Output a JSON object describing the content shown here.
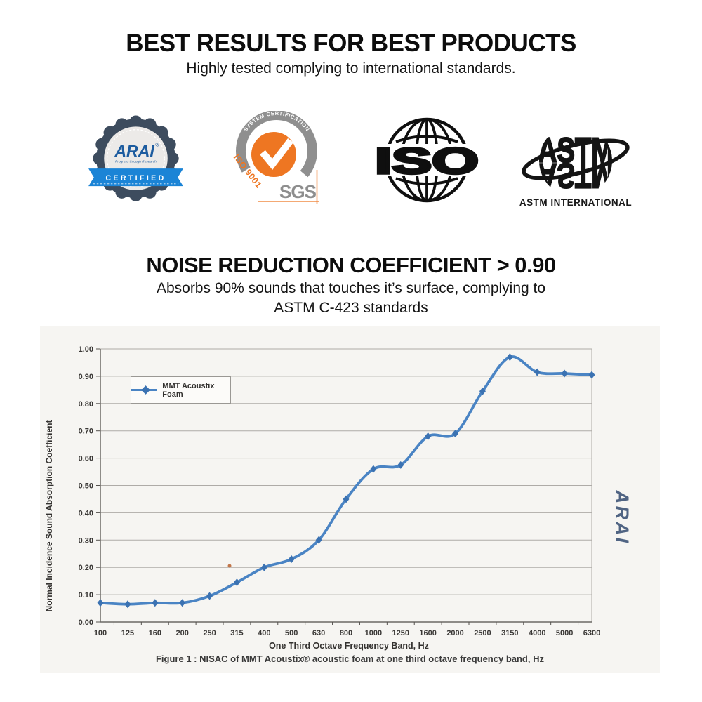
{
  "header": {
    "title": "BEST RESULTS FOR BEST PRODUCTS",
    "subtitle": "Highly tested complying to international standards."
  },
  "logos": {
    "arai": {
      "name": "ARAI",
      "registered": "®",
      "tagline": "Progress through Research",
      "banner": "CERTIFIED"
    },
    "sgs": {
      "arch_text": "SYSTEM CERTIFICATION",
      "side_text": "ISO 9001",
      "wordmark": "SGS"
    },
    "iso": {
      "wordmark": "ISO"
    },
    "astm": {
      "wordmark": "ASTM",
      "mirror": "ASTM",
      "caption": "ASTM INTERNATIONAL"
    }
  },
  "nrc_section": {
    "title": "NOISE REDUCTION COEFFICIENT > 0.90",
    "subtitle_line1": "Absorbs 90% sounds that touches it’s surface, complying to",
    "subtitle_line2": "ASTM C-423 standards"
  },
  "colors": {
    "chart_line": "#4a84c4",
    "chart_marker": "#3b72b2",
    "arai_navy": "#3d4c5e",
    "arai_blue": "#1d5c9f",
    "arai_ribbon": "#1b84d6",
    "sgs_orange": "#ee7622",
    "sgs_gray": "#8e8e8e",
    "scan_background": "#f6f5f2"
  },
  "chart_data": {
    "type": "line",
    "categories": [
      "100",
      "125",
      "160",
      "200",
      "250",
      "315",
      "400",
      "500",
      "630",
      "800",
      "1000",
      "1250",
      "1600",
      "2000",
      "2500",
      "3150",
      "4000",
      "5000",
      "6300"
    ],
    "series": [
      {
        "name": "MMT Acoustix Foam",
        "values": [
          0.07,
          0.065,
          0.07,
          0.07,
          0.095,
          0.145,
          0.2,
          0.23,
          0.3,
          0.45,
          0.56,
          0.575,
          0.68,
          0.69,
          0.845,
          0.97,
          0.915,
          0.91,
          0.905
        ]
      }
    ],
    "title": "",
    "xlabel": "One Third Octave Frequency Band, Hz",
    "ylabel": "Normal Incidence Sound Absorption Coefficient",
    "ylim": [
      0,
      1
    ],
    "ytick_labels": [
      "0.00",
      "0.10",
      "0.20",
      "0.30",
      "0.40",
      "0.50",
      "0.60",
      "0.70",
      "0.80",
      "0.90",
      "1.00"
    ],
    "grid": true,
    "legend_position": "inset-top-left",
    "marker": "diamond",
    "caption": "Figure 1 : NISAC of MMT Acoustix® acoustic foam at one third octave frequency band, Hz",
    "watermark": "ARAI"
  }
}
